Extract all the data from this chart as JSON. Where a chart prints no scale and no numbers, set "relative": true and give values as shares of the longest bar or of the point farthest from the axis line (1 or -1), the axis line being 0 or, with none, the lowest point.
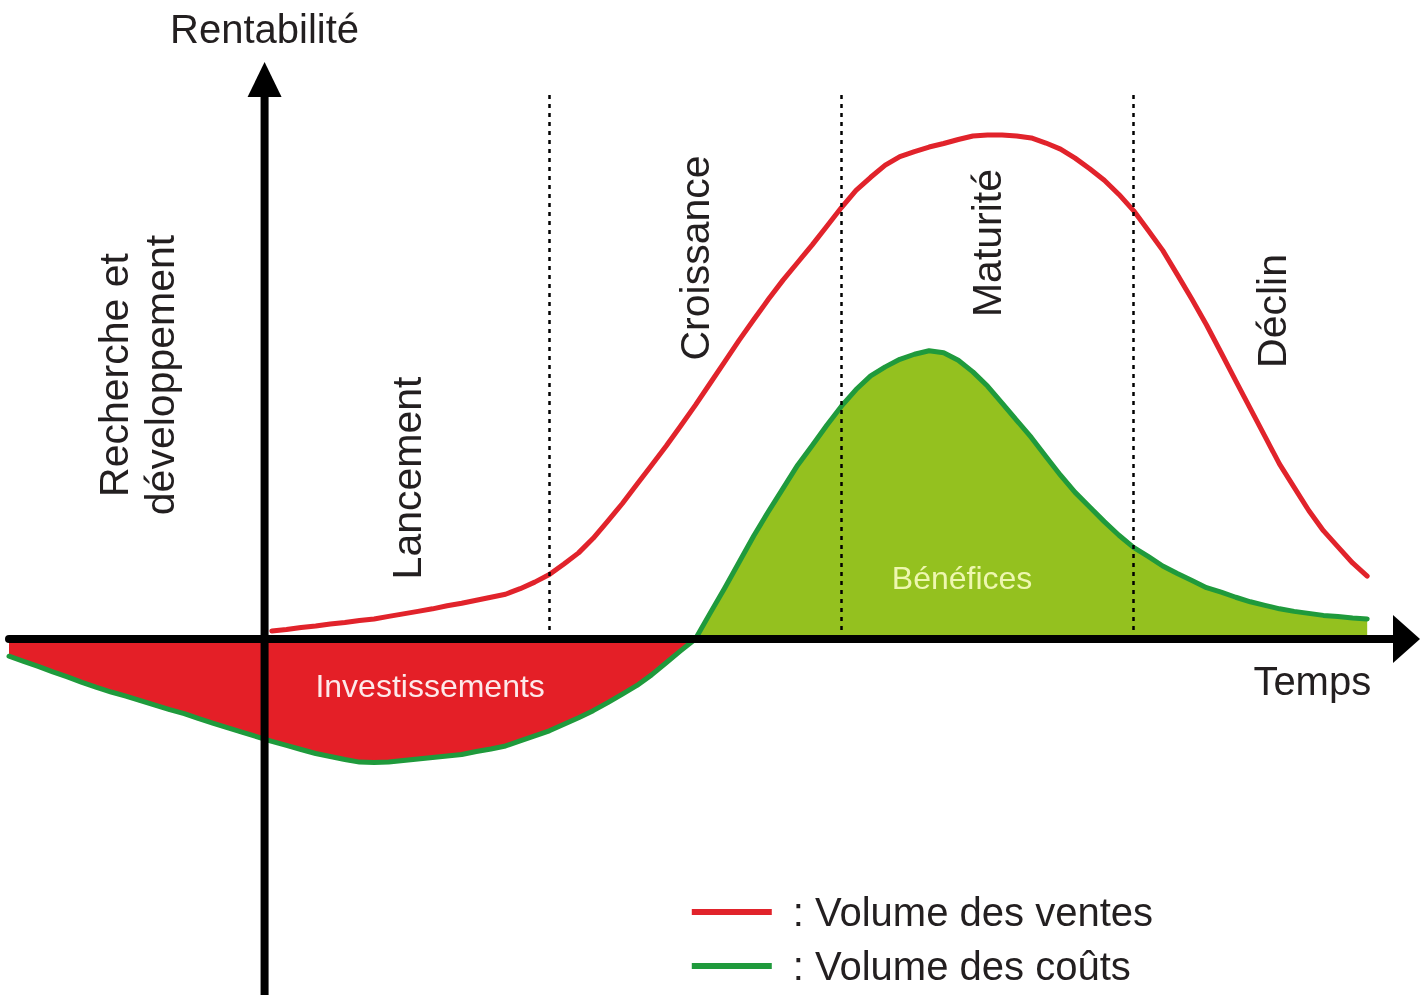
{
  "chart_data": {
    "type": "line",
    "relative": true,
    "ylabel": "Rentabilité",
    "xlabel": "Temps",
    "annotations": [
      "Recherche et développement",
      "Lancement",
      "Croissance",
      "Maturité",
      "Déclin"
    ],
    "categories": [
      null,
      null,
      null,
      null,
      null,
      null,
      null,
      null,
      null,
      null,
      null,
      null,
      null,
      null,
      null,
      null,
      null,
      null,
      null,
      null,
      null,
      null,
      null,
      null,
      null,
      null,
      null,
      null,
      null,
      null,
      null,
      null,
      null,
      null,
      null,
      null,
      null,
      null,
      null,
      null,
      null,
      null,
      null,
      null,
      null,
      null,
      null,
      null,
      null,
      null,
      null,
      null,
      null,
      null,
      null,
      null,
      null,
      null,
      null,
      null,
      null,
      null,
      null,
      null,
      null,
      null,
      null,
      null,
      null,
      null,
      null,
      null,
      null,
      null,
      null,
      null,
      null,
      null,
      null,
      null,
      null,
      null,
      null,
      null,
      null,
      null,
      null,
      null,
      null,
      null,
      null,
      null,
      null,
      null,
      null,
      null,
      null
    ],
    "series": [
      {
        "name": ": Volume des ventes",
        "color": "#e1232b",
        "values": [
          null,
          null,
          null,
          null,
          null,
          null,
          null,
          null,
          null,
          null,
          null,
          null,
          null,
          null,
          null,
          null,
          null,
          null,
          0.016,
          0.019,
          0.023,
          0.026,
          0.03,
          0.033,
          0.037,
          0.04,
          0.045,
          0.05,
          0.055,
          0.06,
          0.066,
          0.071,
          0.077,
          0.083,
          0.089,
          0.1,
          0.113,
          0.128,
          0.149,
          0.171,
          0.2,
          0.234,
          0.269,
          0.307,
          0.345,
          0.383,
          0.423,
          0.464,
          0.507,
          0.55,
          0.593,
          0.634,
          0.674,
          0.712,
          0.747,
          0.782,
          0.819,
          0.856,
          0.89,
          0.916,
          0.94,
          0.957,
          0.967,
          0.976,
          0.983,
          0.991,
          0.998,
          1.0,
          1.0,
          0.998,
          0.994,
          0.984,
          0.972,
          0.954,
          0.933,
          0.91,
          0.882,
          0.85,
          0.811,
          0.771,
          0.723,
          0.674,
          0.623,
          0.568,
          0.512,
          0.457,
          0.402,
          0.347,
          0.301,
          0.255,
          0.215,
          0.183,
          0.151,
          0.125,
          null,
          null,
          null
        ]
      },
      {
        "name": ": Volume des coûts",
        "color": "#1f9a3c",
        "values": [
          -0.034,
          -0.044,
          -0.054,
          -0.065,
          -0.075,
          -0.086,
          -0.096,
          -0.105,
          -0.113,
          -0.122,
          -0.131,
          -0.14,
          -0.148,
          -0.158,
          -0.167,
          -0.176,
          -0.185,
          -0.194,
          -0.203,
          -0.211,
          -0.219,
          -0.227,
          -0.233,
          -0.239,
          -0.244,
          -0.245,
          -0.244,
          -0.241,
          -0.238,
          -0.235,
          -0.232,
          -0.229,
          -0.223,
          -0.218,
          -0.212,
          -0.202,
          -0.192,
          -0.182,
          -0.169,
          -0.156,
          -0.142,
          -0.126,
          -0.109,
          -0.092,
          -0.071,
          -0.047,
          -0.023,
          0,
          0.051,
          0.101,
          0.153,
          0.205,
          0.253,
          0.299,
          0.345,
          0.384,
          0.424,
          0.462,
          0.495,
          0.522,
          0.54,
          0.555,
          0.565,
          0.572,
          0.568,
          0.553,
          0.53,
          0.502,
          0.468,
          0.434,
          0.4,
          0.362,
          0.325,
          0.291,
          0.262,
          0.233,
          0.206,
          0.182,
          0.164,
          0.145,
          0.13,
          0.116,
          0.102,
          0.093,
          0.083,
          0.074,
          0.067,
          0.06,
          0.055,
          0.051,
          0.047,
          0.045,
          0.042,
          0.04,
          null,
          null,
          null
        ]
      },
      {
        "name": "Investissements",
        "type": "area",
        "color": "#e41f27",
        "values": [
          -0.034,
          -0.044,
          -0.054,
          -0.065,
          -0.075,
          -0.086,
          -0.096,
          -0.105,
          -0.113,
          -0.122,
          -0.131,
          -0.14,
          -0.148,
          -0.158,
          -0.167,
          -0.176,
          -0.185,
          -0.194,
          -0.203,
          -0.211,
          -0.219,
          -0.227,
          -0.233,
          -0.239,
          -0.244,
          -0.245,
          -0.244,
          -0.241,
          -0.238,
          -0.235,
          -0.232,
          -0.229,
          -0.223,
          -0.218,
          -0.212,
          -0.202,
          -0.192,
          -0.182,
          -0.169,
          -0.156,
          -0.142,
          -0.126,
          -0.109,
          -0.092,
          -0.071,
          -0.047,
          -0.023,
          0,
          null,
          null,
          null,
          null,
          null,
          null,
          null,
          null,
          null,
          null,
          null,
          null,
          null,
          null,
          null,
          null,
          null,
          null,
          null,
          null,
          null,
          null,
          null,
          null,
          null,
          null,
          null,
          null,
          null,
          null,
          null,
          null,
          null,
          null,
          null,
          null,
          null,
          null,
          null,
          null,
          null,
          null,
          null,
          null,
          null,
          null,
          null,
          null,
          null
        ]
      },
      {
        "name": "Bénéfices",
        "type": "area",
        "color": "#94c11f",
        "values": [
          null,
          null,
          null,
          null,
          null,
          null,
          null,
          null,
          null,
          null,
          null,
          null,
          null,
          null,
          null,
          null,
          null,
          null,
          null,
          null,
          null,
          null,
          null,
          null,
          null,
          null,
          null,
          null,
          null,
          null,
          null,
          null,
          null,
          null,
          null,
          null,
          null,
          null,
          null,
          null,
          null,
          null,
          null,
          null,
          null,
          null,
          null,
          0,
          0.051,
          0.101,
          0.153,
          0.205,
          0.253,
          0.299,
          0.345,
          0.384,
          0.424,
          0.462,
          0.495,
          0.522,
          0.54,
          0.555,
          0.565,
          0.572,
          0.568,
          0.553,
          0.53,
          0.502,
          0.468,
          0.434,
          0.4,
          0.362,
          0.325,
          0.291,
          0.262,
          0.233,
          0.206,
          0.182,
          0.164,
          0.145,
          0.13,
          0.116,
          0.102,
          0.093,
          0.083,
          0.074,
          0.067,
          0.06,
          0.055,
          0.051,
          0.047,
          0.045,
          0.042,
          0.04,
          null,
          null,
          null
        ]
      }
    ],
    "grid": "x",
    "tick_labels": false,
    "legend": "bottom right"
  }
}
